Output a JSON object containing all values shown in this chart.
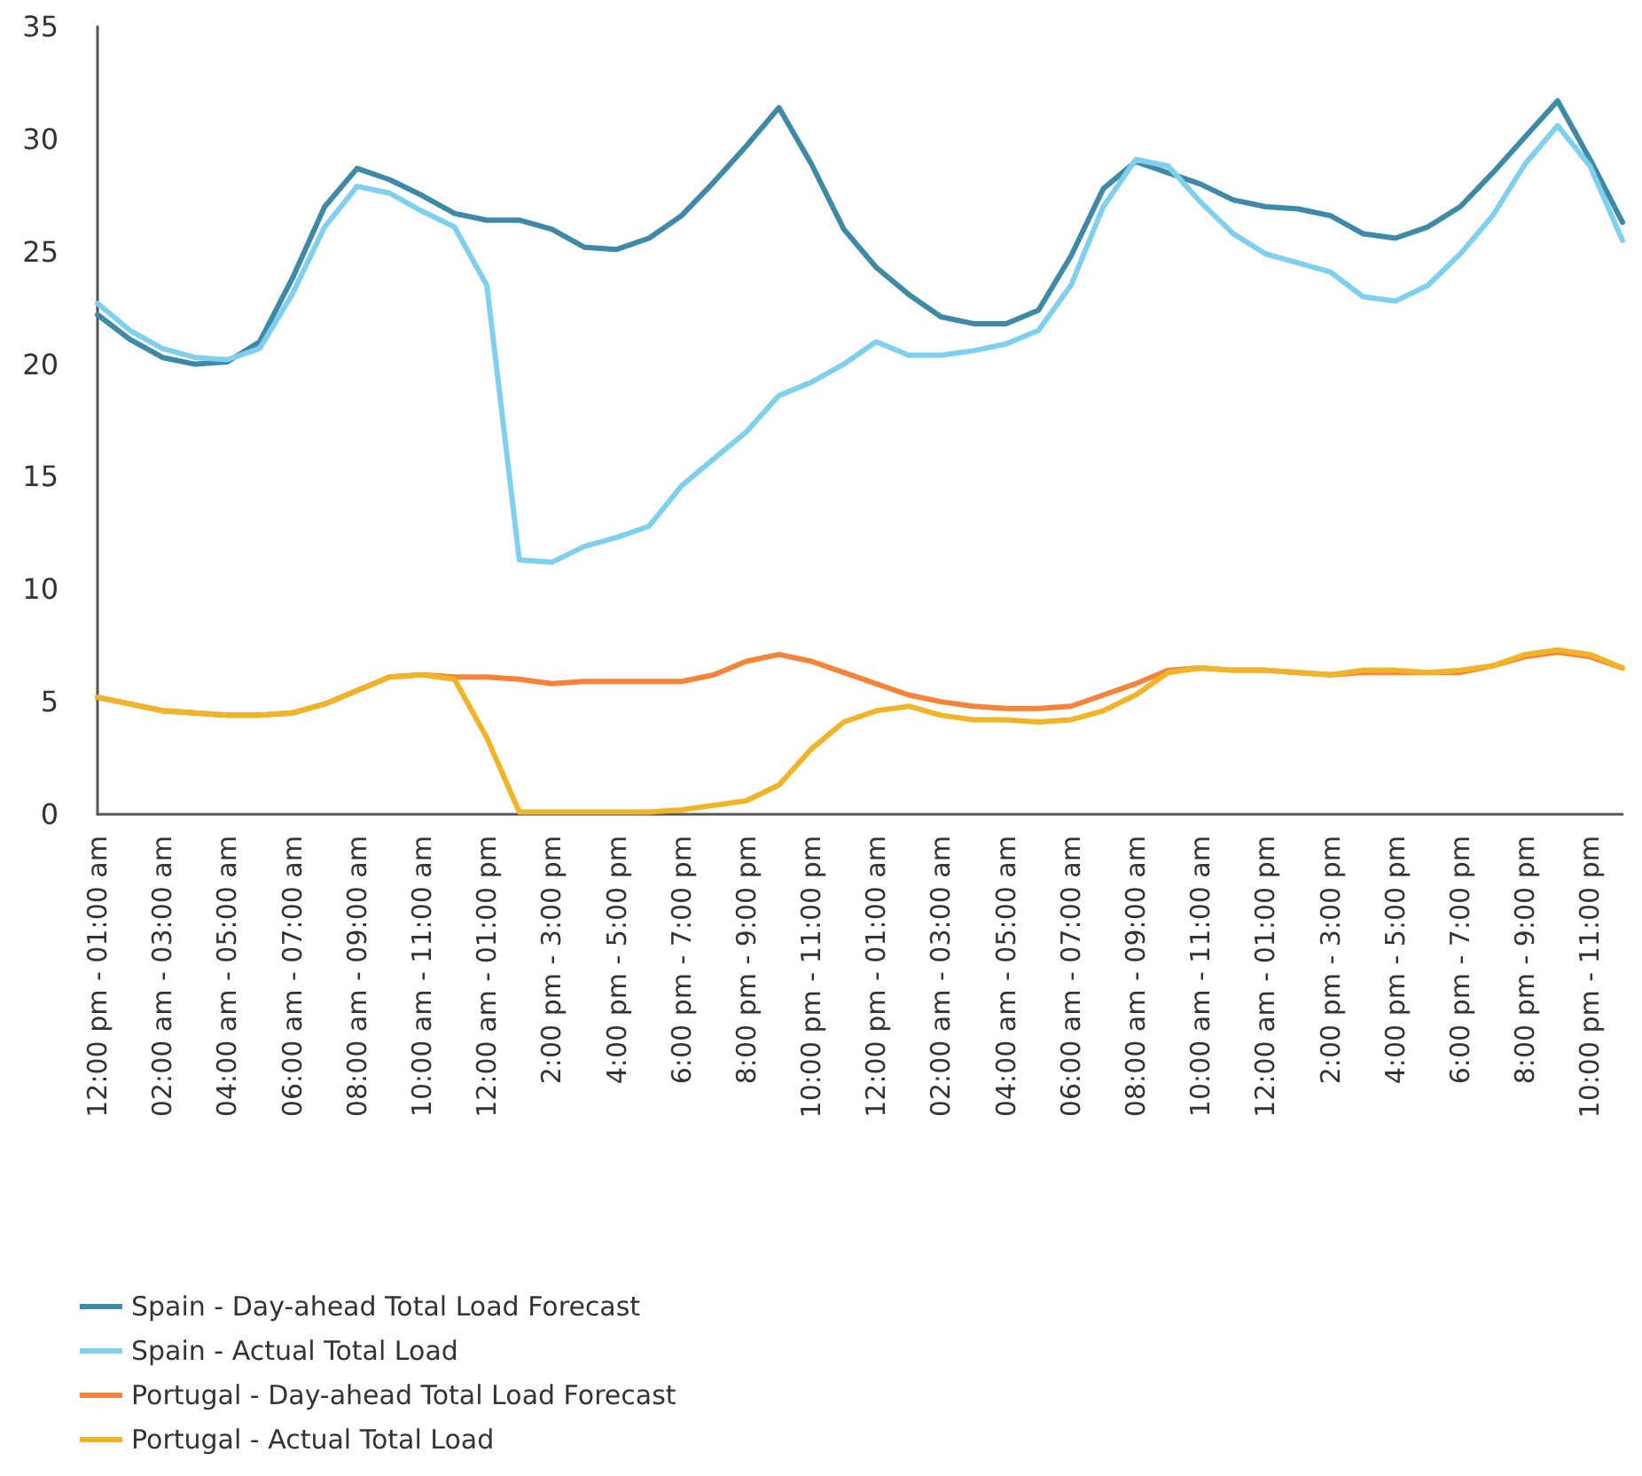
{
  "chart_data": {
    "type": "line",
    "categories": [
      "12:00 pm - 01:00 am",
      null,
      "02:00 am - 03:00 am",
      null,
      "04:00 am - 05:00 am",
      null,
      "06:00 am - 07:00 am",
      null,
      "08:00 am - 09:00 am",
      null,
      "10:00 am - 11:00 am",
      null,
      "12:00 am - 01:00 pm",
      null,
      "2:00 pm - 3:00 pm",
      null,
      "4:00 pm - 5:00 pm",
      null,
      "6:00 pm - 7:00 pm",
      null,
      "8:00 pm - 9:00 pm",
      null,
      "10:00 pm - 11:00 pm",
      null,
      "12:00 pm - 01:00 am",
      null,
      "02:00 am - 03:00 am",
      null,
      "04:00 am - 05:00 am",
      null,
      "06:00 am - 07:00 am",
      null,
      "08:00 am - 09:00 am",
      null,
      "10:00 am - 11:00 am",
      null,
      "12:00 am - 01:00 pm",
      null,
      "2:00 pm - 3:00 pm",
      null,
      "4:00 pm - 5:00 pm",
      null,
      "6:00 pm - 7:00 pm",
      null,
      "8:00 pm - 9:00 pm",
      null,
      "10:00 pm - 11:00 pm",
      null
    ],
    "series": [
      {
        "name": "Spain - Day-ahead Total Load Forecast",
        "color": "#3d89a6",
        "values": [
          22.2,
          21.1,
          20.3,
          20.0,
          20.1,
          21.0,
          23.8,
          27.0,
          28.7,
          28.2,
          27.5,
          26.7,
          26.4,
          26.4,
          26.0,
          25.2,
          25.1,
          25.6,
          26.6,
          28.1,
          29.7,
          31.4,
          28.9,
          26.0,
          24.3,
          23.1,
          22.1,
          21.8,
          21.8,
          22.4,
          24.8,
          27.8,
          29.0,
          28.5,
          28.0,
          27.3,
          27.0,
          26.9,
          26.6,
          25.8,
          25.6,
          26.1,
          27.0,
          28.5,
          30.1,
          31.7,
          29.1,
          26.3
        ]
      },
      {
        "name": "Spain - Actual Total Load",
        "color": "#7fd0ee",
        "values": [
          22.7,
          21.5,
          20.7,
          20.3,
          20.2,
          20.7,
          23.1,
          26.1,
          27.9,
          27.6,
          26.8,
          26.1,
          23.5,
          11.3,
          11.2,
          11.9,
          12.3,
          12.8,
          14.6,
          15.8,
          17.0,
          18.6,
          19.2,
          20.0,
          21.0,
          20.4,
          20.4,
          20.6,
          20.9,
          21.5,
          23.5,
          27.0,
          29.1,
          28.8,
          27.2,
          25.8,
          24.9,
          24.5,
          24.1,
          23.0,
          22.8,
          23.5,
          24.9,
          26.6,
          28.9,
          30.6,
          28.8,
          25.5
        ]
      },
      {
        "name": "Portugal - Day-ahead Total Load Forecast",
        "color": "#f5843a",
        "values": [
          5.2,
          4.9,
          4.6,
          4.5,
          4.4,
          4.4,
          4.5,
          4.9,
          5.5,
          6.1,
          6.2,
          6.1,
          6.1,
          6.0,
          5.8,
          5.9,
          5.9,
          5.9,
          5.9,
          6.2,
          6.8,
          7.1,
          6.8,
          6.3,
          5.8,
          5.3,
          5.0,
          4.8,
          4.7,
          4.7,
          4.8,
          5.3,
          5.8,
          6.4,
          6.5,
          6.4,
          6.4,
          6.3,
          6.2,
          6.3,
          6.3,
          6.3,
          6.3,
          6.6,
          7.0,
          7.2,
          7.0,
          6.5
        ]
      },
      {
        "name": "Portugal - Actual Total Load",
        "color": "#f0b429",
        "values": [
          5.2,
          4.9,
          4.6,
          4.5,
          4.4,
          4.4,
          4.5,
          4.9,
          5.5,
          6.1,
          6.2,
          6.0,
          3.4,
          0.1,
          0.1,
          0.1,
          0.1,
          0.1,
          0.2,
          0.4,
          0.6,
          1.3,
          2.9,
          4.1,
          4.6,
          4.8,
          4.4,
          4.2,
          4.2,
          4.1,
          4.2,
          4.6,
          5.3,
          6.3,
          6.5,
          6.4,
          6.4,
          6.3,
          6.2,
          6.4,
          6.4,
          6.3,
          6.4,
          6.6,
          7.1,
          7.3,
          7.1,
          6.5
        ]
      }
    ],
    "ylim": [
      0,
      35
    ],
    "yticks": [
      0,
      5,
      10,
      15,
      20,
      25,
      30,
      35
    ],
    "grid": false,
    "legend": "bottom left",
    "marker": "none",
    "line_style": "solid"
  }
}
